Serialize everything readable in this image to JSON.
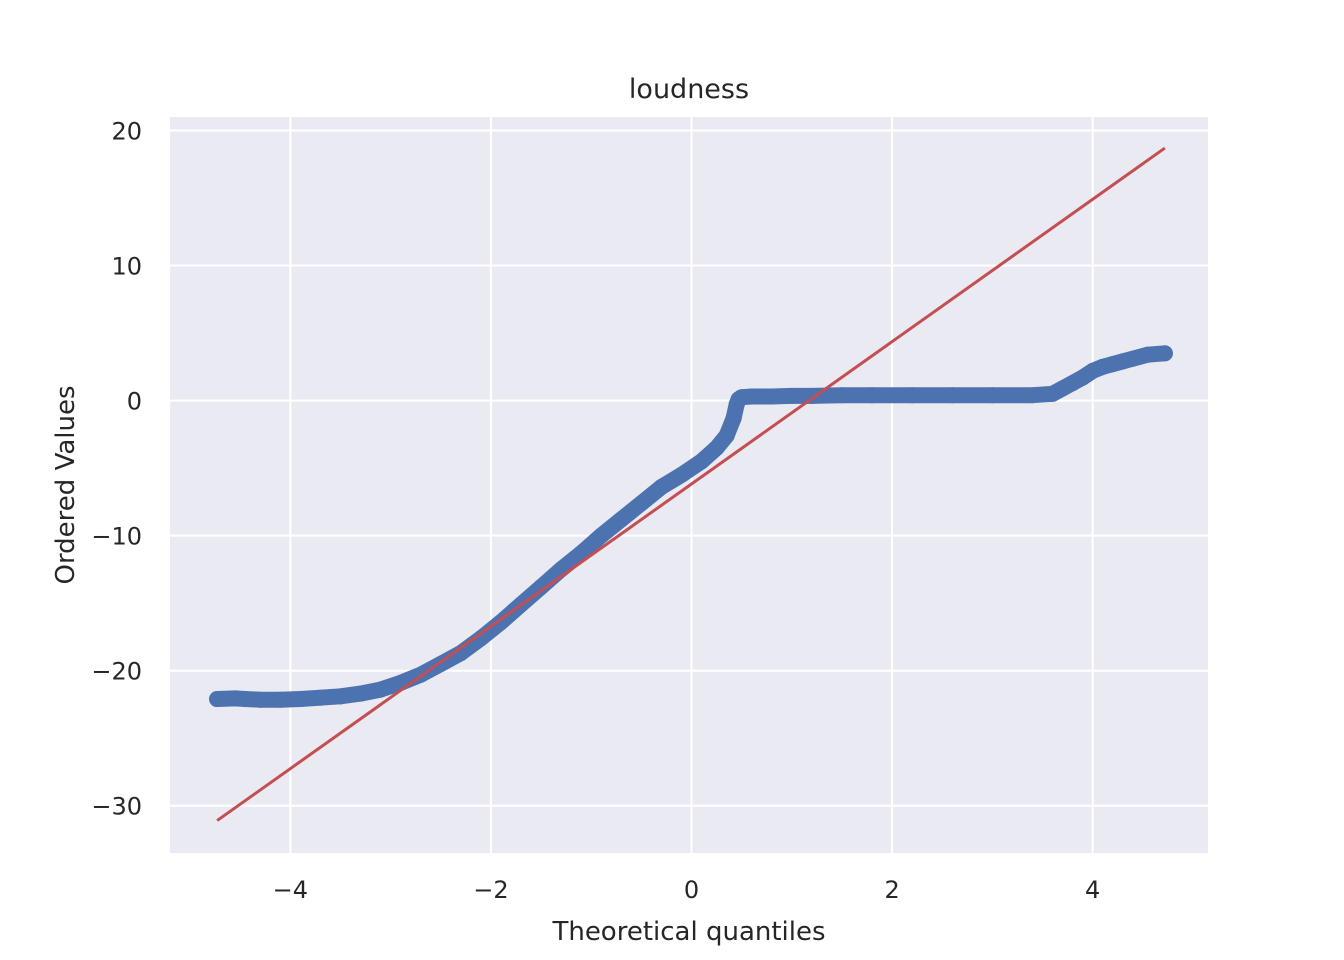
{
  "chart_data": {
    "type": "scatter",
    "title": "loudness",
    "xlabel": "Theoretical quantiles",
    "ylabel": "Ordered Values",
    "xlim": [
      -5.2,
      5.15
    ],
    "ylim": [
      -33.5,
      21.0
    ],
    "xticks": [
      -4,
      -2,
      0,
      2,
      4
    ],
    "xtick_labels": [
      "−4",
      "−2",
      "0",
      "2",
      "4"
    ],
    "yticks": [
      -30,
      -20,
      -10,
      0,
      10,
      20
    ],
    "ytick_labels": [
      "−30",
      "−20",
      "−10",
      "0",
      "10",
      "20"
    ],
    "grid": true,
    "background_color": "#eaeaf2",
    "series": [
      {
        "kind": "points",
        "color": "#4c72b0",
        "x": [
          -4.73,
          -4.55,
          -4.45,
          -4.3,
          -4.1,
          -3.9,
          -3.7,
          -3.5,
          -3.3,
          -3.1,
          -2.9,
          -2.7,
          -2.5,
          -2.3,
          -2.1,
          -1.9,
          -1.7,
          -1.5,
          -1.3,
          -1.1,
          -0.9,
          -0.7,
          -0.5,
          -0.3,
          -0.1,
          0.1,
          0.25,
          0.35,
          0.42,
          0.45,
          0.47,
          0.49,
          0.5,
          0.6,
          0.8,
          1.0,
          1.2,
          1.5,
          1.8,
          2.2,
          2.6,
          3.0,
          3.4,
          3.6,
          3.7,
          3.8,
          3.9,
          4.0,
          4.1,
          4.2,
          4.3,
          4.4,
          4.55,
          4.72
        ],
        "y": [
          -22.1,
          -22.05,
          -22.1,
          -22.15,
          -22.15,
          -22.1,
          -22.0,
          -21.9,
          -21.7,
          -21.4,
          -20.9,
          -20.3,
          -19.5,
          -18.7,
          -17.6,
          -16.4,
          -15.1,
          -13.8,
          -12.5,
          -11.3,
          -10.0,
          -8.8,
          -7.6,
          -6.4,
          -5.5,
          -4.5,
          -3.5,
          -2.6,
          -1.3,
          -0.3,
          0.1,
          0.2,
          0.25,
          0.3,
          0.3,
          0.35,
          0.35,
          0.4,
          0.4,
          0.4,
          0.4,
          0.4,
          0.4,
          0.5,
          0.9,
          1.3,
          1.7,
          2.2,
          2.5,
          2.7,
          2.9,
          3.1,
          3.4,
          3.5
        ]
      },
      {
        "kind": "line",
        "color": "#c44e52",
        "x": [
          -4.73,
          4.72
        ],
        "y": [
          -31.1,
          18.7
        ]
      }
    ]
  }
}
